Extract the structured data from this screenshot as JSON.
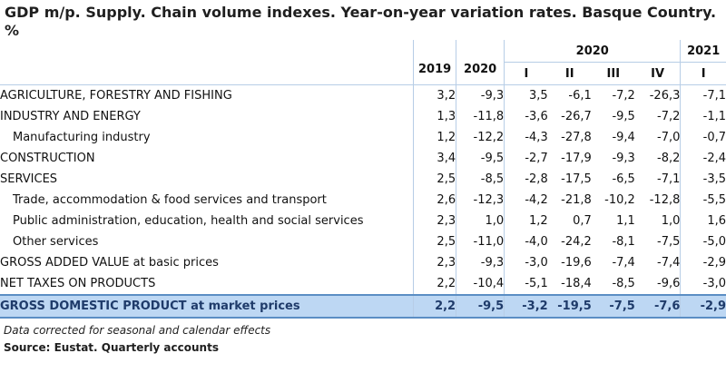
{
  "title": "GDP m/p. Supply. Chain volume indexes. Year-on-year variation rates. Basque Country. %",
  "header": {
    "year_2019": "2019",
    "year_2020": "2020",
    "group_2020": "2020",
    "group_2021": "2021",
    "q1": "I",
    "q2": "II",
    "q3": "III",
    "q4": "IV",
    "q2021_1": "I"
  },
  "rows": [
    {
      "label": "AGRICULTURE, FORESTRY AND FISHING",
      "v": [
        "3,2",
        "-9,3",
        "3,5",
        "-6,1",
        "-7,2",
        "-26,3",
        "-7,1"
      ]
    },
    {
      "label": "INDUSTRY AND ENERGY",
      "v": [
        "1,3",
        "-11,8",
        "-3,6",
        "-26,7",
        "-9,5",
        "-7,2",
        "-1,1"
      ]
    },
    {
      "label": "Manufacturing industry",
      "v": [
        "1,2",
        "-12,2",
        "-4,3",
        "-27,8",
        "-9,4",
        "-7,0",
        "-0,7"
      ]
    },
    {
      "label": "CONSTRUCTION",
      "v": [
        "3,4",
        "-9,5",
        "-2,7",
        "-17,9",
        "-9,3",
        "-8,2",
        "-2,4"
      ]
    },
    {
      "label": "SERVICES",
      "v": [
        "2,5",
        "-8,5",
        "-2,8",
        "-17,5",
        "-6,5",
        "-7,1",
        "-3,5"
      ]
    },
    {
      "label": "Trade, accommodation & food services and transport",
      "v": [
        "2,6",
        "-12,3",
        "-4,2",
        "-21,8",
        "-10,2",
        "-12,8",
        "-5,5"
      ]
    },
    {
      "label": "Public administration, education, health and social services",
      "v": [
        "2,3",
        "1,0",
        "1,2",
        "0,7",
        "1,1",
        "1,0",
        "1,6"
      ]
    },
    {
      "label": "Other services",
      "v": [
        "2,5",
        "-11,0",
        "-4,0",
        "-24,2",
        "-8,1",
        "-7,5",
        "-5,0"
      ]
    },
    {
      "label": "GROSS ADDED VALUE at basic prices",
      "v": [
        "2,3",
        "-9,3",
        "-3,0",
        "-19,6",
        "-7,4",
        "-7,4",
        "-2,9"
      ]
    },
    {
      "label": "NET TAXES ON PRODUCTS",
      "v": [
        "2,2",
        "-10,4",
        "-5,1",
        "-18,4",
        "-8,5",
        "-9,6",
        "-3,0"
      ]
    }
  ],
  "total": {
    "label": "GROSS DOMESTIC PRODUCT at market prices",
    "v": [
      "2,2",
      "-9,5",
      "-3,2",
      "-19,5",
      "-7,5",
      "-7,6",
      "-2,9"
    ]
  },
  "note": "Data corrected for seasonal and calendar effects",
  "source": "Source: Eustat. Quarterly accounts",
  "colors": {
    "total_row_bg": "#bdd7f3",
    "grid": "#b7cde6",
    "accent_line": "#5b8ec4"
  }
}
